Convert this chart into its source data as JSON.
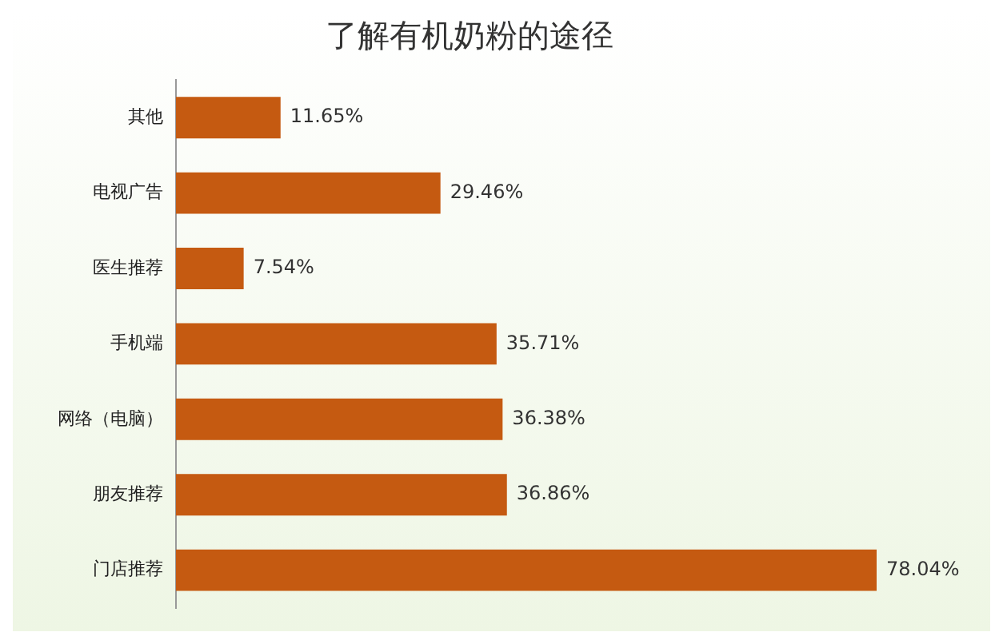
{
  "chart_data": {
    "type": "bar",
    "orientation": "horizontal",
    "title": "了解有机奶粉的途径",
    "categories": [
      "其他",
      "电视广告",
      "医生推荐",
      "手机端",
      "网络（电脑）",
      "朋友推荐",
      "门店推荐"
    ],
    "values": [
      11.65,
      29.46,
      7.54,
      35.71,
      36.38,
      36.86,
      78.04
    ],
    "value_labels": [
      "11.65%",
      "29.46%",
      "7.54%",
      "35.71%",
      "36.38%",
      "36.86%",
      "78.04%"
    ],
    "color": "#c55a11",
    "tick_labels": "y",
    "grid": false,
    "legend": false
  }
}
